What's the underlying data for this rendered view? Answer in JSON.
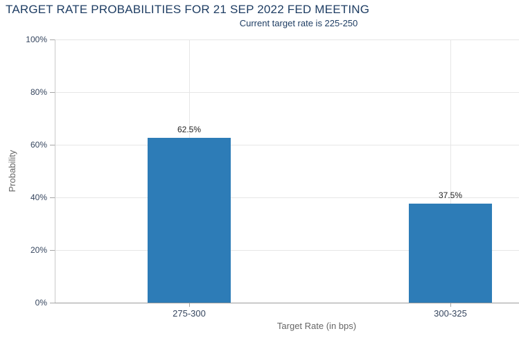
{
  "chart_data": {
    "type": "bar",
    "title": "TARGET RATE PROBABILITIES FOR 21 SEP 2022 FED MEETING",
    "subtitle": "Current target rate is 225-250",
    "categories": [
      "275-300",
      "300-325"
    ],
    "values": [
      62.5,
      37.5
    ],
    "data_labels": [
      "62.5%",
      "37.5%"
    ],
    "xlabel": "Target Rate (in bps)",
    "ylabel": "Probability",
    "ylim": [
      0,
      100
    ],
    "ytick_step": 20,
    "ytick_labels": [
      "0%",
      "20%",
      "40%",
      "60%",
      "80%",
      "100%"
    ],
    "grid": true,
    "legend": false,
    "colors": {
      "bar": "#2d7cb7",
      "title_text": "#1e3d63",
      "subtitle_text": "#1e3d63",
      "tick_label_text": "#35455e",
      "axis_title_text": "#666666",
      "data_label_text": "#222222",
      "grid_line": "#e6e6e6",
      "y_axis_line": "#c9c9c9",
      "x_axis_line": "#9b9b9b",
      "tick_mark": "#a5a5a5",
      "background": "#ffffff"
    }
  }
}
